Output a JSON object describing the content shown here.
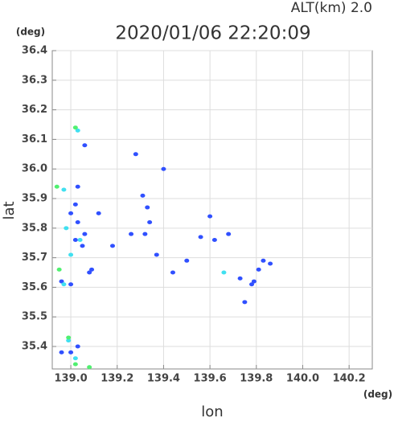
{
  "chart_data": {
    "type": "scatter",
    "title": "2020/01/06 22:20:09",
    "subtitle": "ALT(km)  2.0",
    "x_unit": "(deg)",
    "y_unit": "(deg)",
    "x_label": "lon",
    "y_label": "lat",
    "xlim": [
      138.92,
      140.3
    ],
    "ylim": [
      35.324,
      36.4
    ],
    "xticks": [
      {
        "value": 139,
        "label": "139.0"
      },
      139.2,
      139.4,
      139.6,
      139.8,
      {
        "value": 140,
        "label": "140.0"
      },
      140.2
    ],
    "yticks": [
      35.4,
      35.5,
      35.6,
      35.7,
      35.8,
      35.9,
      {
        "value": 36,
        "label": "36.0"
      },
      36.1,
      36.2,
      36.3,
      36.4
    ],
    "grid": true,
    "series": [
      {
        "color": "#3050ff",
        "x": [
          139.31,
          139.33,
          139.34,
          139.28,
          139.4,
          139.5,
          139.73,
          139.86,
          139.83,
          139.81,
          139.79,
          139.75,
          139.62,
          139.68,
          139.56,
          139.12,
          139.06,
          139.05,
          139.09,
          139.08,
          139.0,
          139.02,
          139.0,
          139.03,
          138.96,
          138.96,
          139.0,
          139.03,
          139.06,
          139.03,
          139.02,
          139.37,
          139.32,
          139.18,
          139.26,
          139.44,
          139.6,
          139.78
        ],
        "values": [
          35.91,
          35.87,
          35.82,
          36.05,
          36.0,
          35.69,
          35.63,
          35.68,
          35.69,
          35.66,
          35.62,
          35.55,
          35.76,
          35.78,
          35.77,
          35.85,
          35.78,
          35.74,
          35.66,
          35.65,
          35.61,
          35.88,
          35.85,
          35.82,
          35.62,
          35.38,
          35.38,
          35.4,
          36.08,
          35.94,
          35.76,
          35.71,
          35.78,
          35.74,
          35.78,
          35.65,
          35.84,
          35.61
        ]
      },
      {
        "color": "#40e0f0",
        "x": [
          139.03,
          138.97,
          138.98,
          139.04,
          139.0,
          138.97,
          139.02,
          139.66,
          138.99
        ],
        "values": [
          36.13,
          35.93,
          35.8,
          35.76,
          35.71,
          35.61,
          35.36,
          35.65,
          35.42
        ]
      },
      {
        "color": "#50f070",
        "x": [
          139.02,
          138.94,
          138.95,
          138.99,
          139.08,
          139.02
        ],
        "values": [
          36.14,
          35.94,
          35.66,
          35.43,
          35.33,
          35.34
        ]
      }
    ]
  }
}
